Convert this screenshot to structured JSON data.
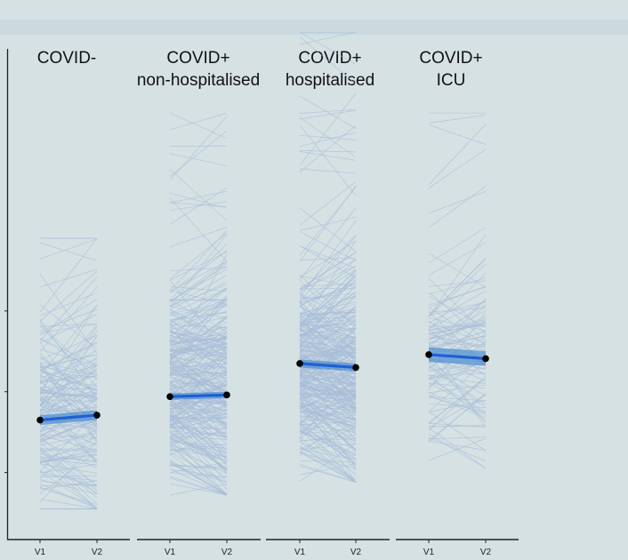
{
  "chart_data": {
    "type": "line",
    "panels": [
      {
        "title": [
          "COVID-",
          ""
        ],
        "x": [
          "V1",
          "V2"
        ],
        "mean": [
          -0.35,
          -0.29
        ],
        "ci": [
          0.06,
          0.06
        ],
        "spread": {
          "min": -1.45,
          "max": 1.9,
          "center": -0.3
        }
      },
      {
        "title": [
          "COVID+",
          "non-hospitalised"
        ],
        "x": [
          "V1",
          "V2"
        ],
        "mean": [
          -0.06,
          -0.04
        ],
        "ci": [
          0.04,
          0.04
        ],
        "spread": {
          "min": -1.28,
          "max": 3.45,
          "center": 0.05
        }
      },
      {
        "title": [
          "COVID+",
          "hospitalised"
        ],
        "x": [
          "V1",
          "V2"
        ],
        "mean": [
          0.35,
          0.3
        ],
        "ci": [
          0.05,
          0.05
        ],
        "spread": {
          "min": -1.12,
          "max": 4.45,
          "center": 0.3
        }
      },
      {
        "title": [
          "COVID+",
          "ICU"
        ],
        "x": [
          "V1",
          "V2"
        ],
        "mean": [
          0.46,
          0.41
        ],
        "ci": [
          0.09,
          0.09
        ],
        "spread": {
          "min": -0.95,
          "max": 3.45,
          "center": 0.35
        }
      }
    ],
    "ylim": [
      -1.83,
      4.85
    ],
    "yticks": [
      -1,
      0,
      1
    ],
    "ytick_labels": [
      "",
      "",
      ""
    ],
    "colors": {
      "background": "#d5e1e3",
      "individual_lines": "#a7bcd8",
      "mean_line": "#1f5fd6",
      "ci_band": "#4d8fd0",
      "point": "#000000"
    }
  }
}
